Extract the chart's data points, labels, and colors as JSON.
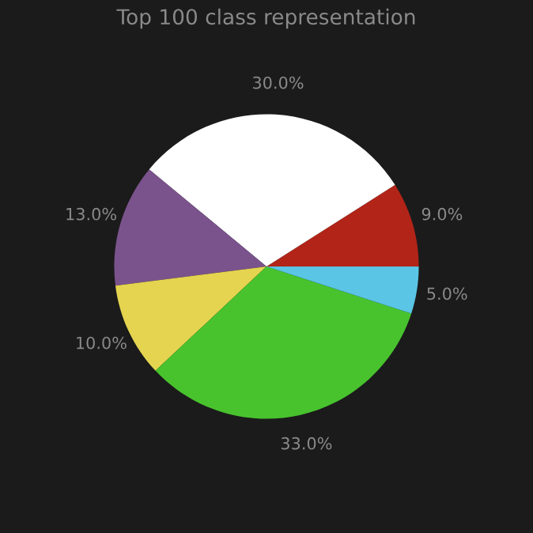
{
  "chart_data": {
    "type": "pie",
    "title": "Top 100 class representation",
    "categories": [
      null,
      null,
      null,
      null,
      null,
      null
    ],
    "values": [
      9,
      30,
      13,
      10,
      33,
      5
    ],
    "value_labels": [
      "9.0%",
      "30.0%",
      "13.0%",
      "10.0%",
      "33.0%",
      "5.0%"
    ],
    "colors": [
      "#b22418",
      "#ffffff",
      "#7a538c",
      "#e5d44f",
      "#48c32e",
      "#5ac5e5"
    ]
  }
}
